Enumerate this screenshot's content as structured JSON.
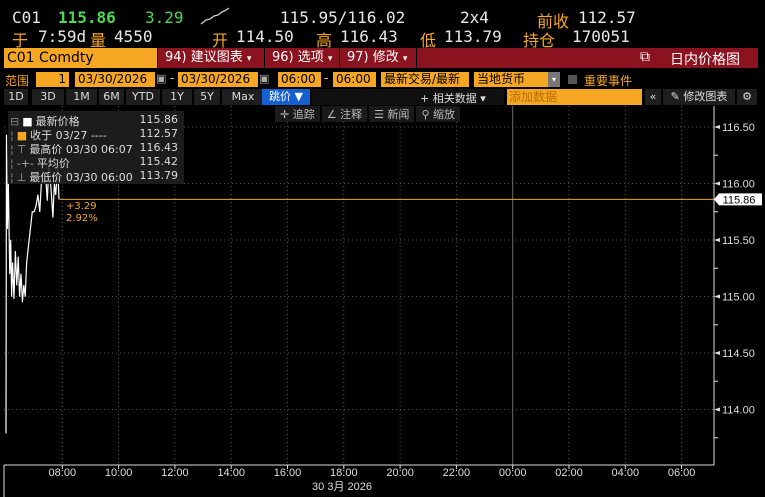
{
  "quote": {
    "ticker": "C01",
    "last": "115.86",
    "change": "3.29",
    "bid_ask": "115.95/116.02",
    "size": "2x4",
    "prev_close_label": "前收",
    "prev_close": "112.57",
    "time_label": "于",
    "time": "7:59d",
    "volume_label": "量",
    "volume": "4550",
    "open_label": "开",
    "open": "114.50",
    "high_label": "高",
    "high": "116.43",
    "low_label": "低",
    "low": "113.79",
    "oi_label": "持仓",
    "oi": "170051"
  },
  "toolbar": {
    "security": "C01 Comdty",
    "suggest": "94) 建议图表",
    "options": "96) 选项",
    "modify": "97) 修改",
    "title": "日内价格图"
  },
  "range": {
    "label": "范围",
    "period": "1",
    "start_date": "03/30/2026",
    "end_date": "03/30/2026",
    "start_time": "06:00",
    "end_time": "06:00",
    "field": "最新交易/最新",
    "currency": "当地货币",
    "events": "重要事件"
  },
  "periods": [
    "1D",
    "3D",
    "1M",
    "6M",
    "YTD",
    "1Y",
    "5Y",
    "Max"
  ],
  "tick_btn": "跳价 ▼",
  "related": "+ 相关数据",
  "add_data_placeholder": "添加数据",
  "edit_chart": "修改图表",
  "chart_tools": [
    "追踪",
    "注释",
    "新闻",
    "缩放"
  ],
  "legend": [
    {
      "label": "最新价格",
      "date": "",
      "value": "115.86"
    },
    {
      "label": "收于",
      "date": "03/27 ----",
      "value": "112.57"
    },
    {
      "label": "最高价",
      "date": "03/30 06:07",
      "value": "116.43"
    },
    {
      "label": "平均价",
      "date": "",
      "value": "115.42"
    },
    {
      "label": "最低价",
      "date": "03/30 06:00",
      "value": "113.79"
    }
  ],
  "change_annot": {
    "abs": "+3.29",
    "pct": "2.92%"
  },
  "colors": {
    "accent": "#f5a623",
    "bar": "#8b1320",
    "up": "#4cdb4c",
    "blue": "#1560d0"
  },
  "chart_data": {
    "type": "line",
    "ylim": [
      113.6,
      116.7
    ],
    "y_ticks": [
      "116.50",
      "116.00",
      "115.50",
      "115.00",
      "114.50",
      "114.00"
    ],
    "x_ticks": [
      "08:00",
      "10:00",
      "12:00",
      "14:00",
      "16:00",
      "18:00",
      "20:00",
      "22:00",
      "00:00",
      "02:00",
      "04:00",
      "06:00"
    ],
    "x_label": "30 3月 2026",
    "last_price_label": "115.86",
    "last_price": 115.86,
    "series": [
      {
        "minutes_after_0600": [
          0,
          1,
          3,
          5,
          8,
          10,
          12,
          14,
          17,
          20,
          23,
          26,
          29,
          32,
          35,
          38,
          41,
          44,
          48,
          52,
          56,
          60,
          64,
          68,
          72,
          76,
          80,
          84,
          88,
          92,
          96,
          100,
          103,
          106,
          110,
          113
        ],
        "values": [
          113.79,
          116.43,
          115.6,
          116.0,
          115.2,
          115.5,
          115.0,
          115.3,
          114.98,
          115.4,
          115.1,
          115.35,
          115.0,
          115.2,
          114.95,
          115.1,
          115.0,
          115.3,
          115.45,
          115.6,
          115.75,
          115.75,
          115.8,
          115.9,
          115.75,
          116.05,
          116.0,
          116.1,
          115.85,
          116.2,
          115.95,
          115.7,
          116.0,
          115.9,
          116.15,
          115.86
        ]
      }
    ]
  }
}
